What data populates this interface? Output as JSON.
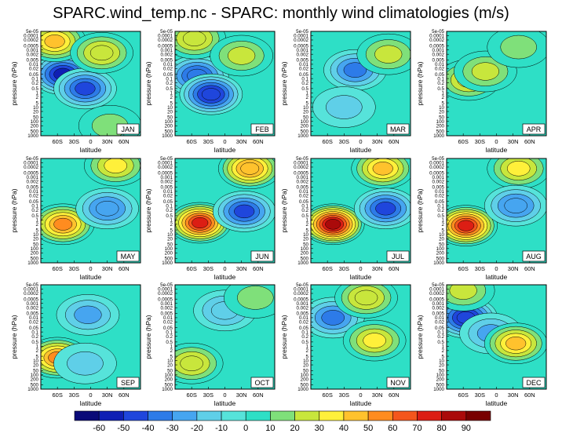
{
  "title": "SPARC.wind_temp.nc - SPARC: monthly wind climatologies (m/s)",
  "chart_data": {
    "type": "heatmap",
    "plot_kind": "filled contour panels",
    "title": "SPARC.wind_temp.nc - SPARC: monthly wind climatologies (m/s)",
    "xlabel": "latitude",
    "ylabel": "pressure (hPa)",
    "x_ticks": [
      "60S",
      "30S",
      "0",
      "30N",
      "60N"
    ],
    "y_ticks": [
      "5e-05",
      "0.0001",
      "0.0002",
      "0.0005",
      "0.001",
      "0.002",
      "0.005",
      "0.01",
      "0.02",
      "0.05",
      "0.1",
      "0.2",
      "0.5",
      "1",
      "2",
      "5",
      "10",
      "20",
      "50",
      "100",
      "200",
      "500",
      "1000"
    ],
    "colorbar": {
      "levels": [
        -60,
        -50,
        -40,
        -30,
        -20,
        -10,
        0,
        10,
        20,
        30,
        40,
        50,
        60,
        70,
        80,
        90
      ],
      "colors": [
        "#0a0a78",
        "#0f1fb4",
        "#1f46dc",
        "#2d7be8",
        "#46a5f0",
        "#5fcfe8",
        "#56e3da",
        "#2edfc6",
        "#7fe07a",
        "#c8e63c",
        "#fff03a",
        "#ffc22d",
        "#ff8c1f",
        "#f4561c",
        "#dc1e14",
        "#aa0a0a",
        "#780000"
      ]
    },
    "panels": [
      {
        "month": "JAN",
        "features": [
          {
            "lat": -50,
            "logp": -1.3,
            "value": -58
          },
          {
            "lat": -10,
            "logp": -0.3,
            "value": -45
          },
          {
            "lat": -65,
            "logp": -3.6,
            "value": 42
          },
          {
            "lat": 20,
            "logp": -2.8,
            "value": 30
          },
          {
            "lat": 35,
            "logp": 2.3,
            "value": 15
          }
        ]
      },
      {
        "month": "FEB",
        "features": [
          {
            "lat": -50,
            "logp": -1.2,
            "value": -40
          },
          {
            "lat": -25,
            "logp": 0.1,
            "value": -50
          },
          {
            "lat": -55,
            "logp": -3.8,
            "value": 30
          },
          {
            "lat": 30,
            "logp": -2.6,
            "value": 22
          }
        ]
      },
      {
        "month": "MAR",
        "features": [
          {
            "lat": -10,
            "logp": -1.6,
            "value": -35
          },
          {
            "lat": -30,
            "logp": 1.0,
            "value": -15
          },
          {
            "lat": 50,
            "logp": -2.7,
            "value": 22
          }
        ]
      },
      {
        "month": "APR",
        "features": [
          {
            "lat": -50,
            "logp": -0.9,
            "value": 38
          },
          {
            "lat": -20,
            "logp": -1.5,
            "value": 25
          },
          {
            "lat": 40,
            "logp": -3.2,
            "value": 12
          }
        ]
      },
      {
        "month": "MAY",
        "features": [
          {
            "lat": -50,
            "logp": 0.3,
            "value": 58
          },
          {
            "lat": 45,
            "logp": -3.8,
            "value": 38
          },
          {
            "lat": 30,
            "logp": -0.8,
            "value": -30
          }
        ]
      },
      {
        "month": "JUN",
        "features": [
          {
            "lat": -45,
            "logp": 0.2,
            "value": 74
          },
          {
            "lat": 45,
            "logp": -3.6,
            "value": 50
          },
          {
            "lat": 35,
            "logp": -0.6,
            "value": -42
          }
        ]
      },
      {
        "month": "JUL",
        "features": [
          {
            "lat": -50,
            "logp": 0.3,
            "value": 82
          },
          {
            "lat": 40,
            "logp": -3.6,
            "value": 48
          },
          {
            "lat": 45,
            "logp": -0.8,
            "value": -46
          }
        ]
      },
      {
        "month": "AUG",
        "features": [
          {
            "lat": -55,
            "logp": 0.4,
            "value": 75
          },
          {
            "lat": 40,
            "logp": -3.6,
            "value": 32
          },
          {
            "lat": 35,
            "logp": -1.0,
            "value": -30
          }
        ]
      },
      {
        "month": "SEP",
        "features": [
          {
            "lat": -60,
            "logp": 0.8,
            "value": 55
          },
          {
            "lat": -5,
            "logp": -2.2,
            "value": -28
          },
          {
            "lat": -10,
            "logp": 1.2,
            "value": -12
          }
        ]
      },
      {
        "month": "OCT",
        "features": [
          {
            "lat": -60,
            "logp": 1.2,
            "value": 30
          },
          {
            "lat": 0,
            "logp": -2.5,
            "value": -20
          },
          {
            "lat": 55,
            "logp": -3.4,
            "value": 15
          }
        ]
      },
      {
        "month": "NOV",
        "features": [
          {
            "lat": -50,
            "logp": -2.0,
            "value": -36
          },
          {
            "lat": 25,
            "logp": -0.4,
            "value": 35
          },
          {
            "lat": 10,
            "logp": -3.4,
            "value": 30
          }
        ]
      },
      {
        "month": "DEC",
        "features": [
          {
            "lat": -55,
            "logp": -2.0,
            "value": -50
          },
          {
            "lat": -10,
            "logp": -0.9,
            "value": -22
          },
          {
            "lat": 35,
            "logp": -0.2,
            "value": 48
          },
          {
            "lat": -60,
            "logp": -3.9,
            "value": 25
          }
        ]
      }
    ]
  }
}
